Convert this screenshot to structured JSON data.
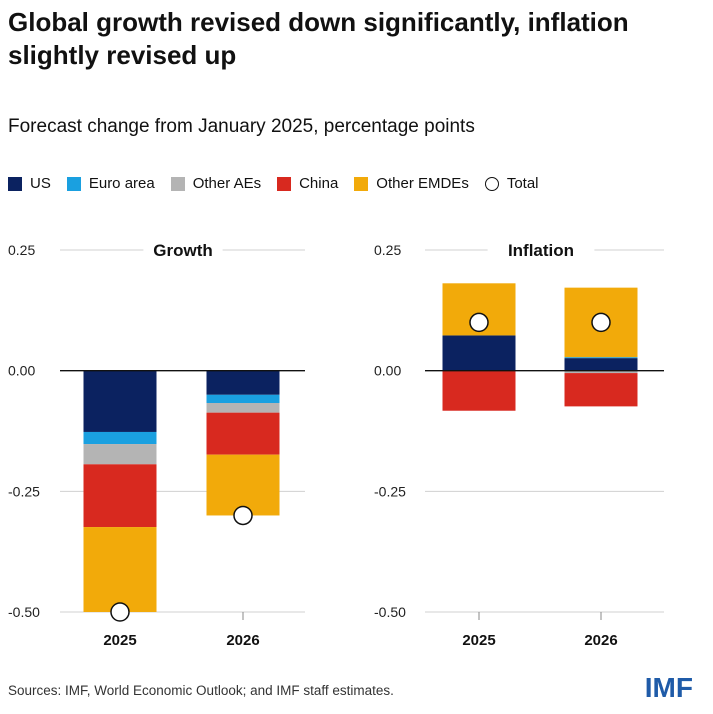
{
  "title": "Global growth revised down significantly, inflation slightly revised up",
  "subtitle": "Forecast change from January 2025, percentage points",
  "legend": [
    {
      "label": "US",
      "color": "#0b2260",
      "shape": "square"
    },
    {
      "label": "Euro area",
      "color": "#1aa0e0",
      "shape": "square"
    },
    {
      "label": "Other AEs",
      "color": "#b4b4b4",
      "shape": "square"
    },
    {
      "label": "China",
      "color": "#d8291f",
      "shape": "square"
    },
    {
      "label": "Other EMDEs",
      "color": "#f2aa0a",
      "shape": "square"
    },
    {
      "label": "Total",
      "color": "#ffffff",
      "shape": "circle"
    }
  ],
  "chart_data": [
    {
      "type": "bar",
      "stacked": true,
      "title": "Growth",
      "categories": [
        "2025",
        "2026"
      ],
      "ylim": [
        -0.5,
        0.25
      ],
      "yticks": [
        "0.25",
        "0.00",
        "-0.25",
        "-0.50"
      ],
      "ytick_values": [
        0.25,
        0.0,
        -0.25,
        -0.5
      ],
      "series": [
        {
          "name": "US",
          "values": [
            -0.127,
            -0.05
          ]
        },
        {
          "name": "Euro area",
          "values": [
            -0.025,
            -0.017
          ]
        },
        {
          "name": "Other AEs",
          "values": [
            -0.042,
            -0.02
          ]
        },
        {
          "name": "China",
          "values": [
            -0.13,
            -0.087
          ]
        },
        {
          "name": "Other EMDEs",
          "values": [
            -0.176,
            -0.126
          ]
        }
      ],
      "total": [
        -0.5,
        -0.3
      ]
    },
    {
      "type": "bar",
      "stacked": true,
      "title": "Inflation",
      "categories": [
        "2025",
        "2026"
      ],
      "ylim": [
        -0.5,
        0.25
      ],
      "yticks": [
        "0.25",
        "0.00",
        "-0.25",
        "-0.50"
      ],
      "ytick_values": [
        0.25,
        0.0,
        -0.25,
        -0.5
      ],
      "series": [
        {
          "name": "US",
          "values": [
            0.073,
            0.026
          ]
        },
        {
          "name": "Euro area",
          "values": [
            0.0,
            0.002
          ]
        },
        {
          "name": "Other AEs",
          "values": [
            0.0,
            -0.005
          ]
        },
        {
          "name": "China",
          "values": [
            -0.083,
            -0.069
          ]
        },
        {
          "name": "Other EMDEs",
          "values": [
            0.108,
            0.144
          ]
        }
      ],
      "total": [
        0.1,
        0.1
      ]
    }
  ],
  "footer": {
    "source": "Sources: IMF, World Economic Outlook; and IMF staff estimates.",
    "logo": "IMF"
  }
}
